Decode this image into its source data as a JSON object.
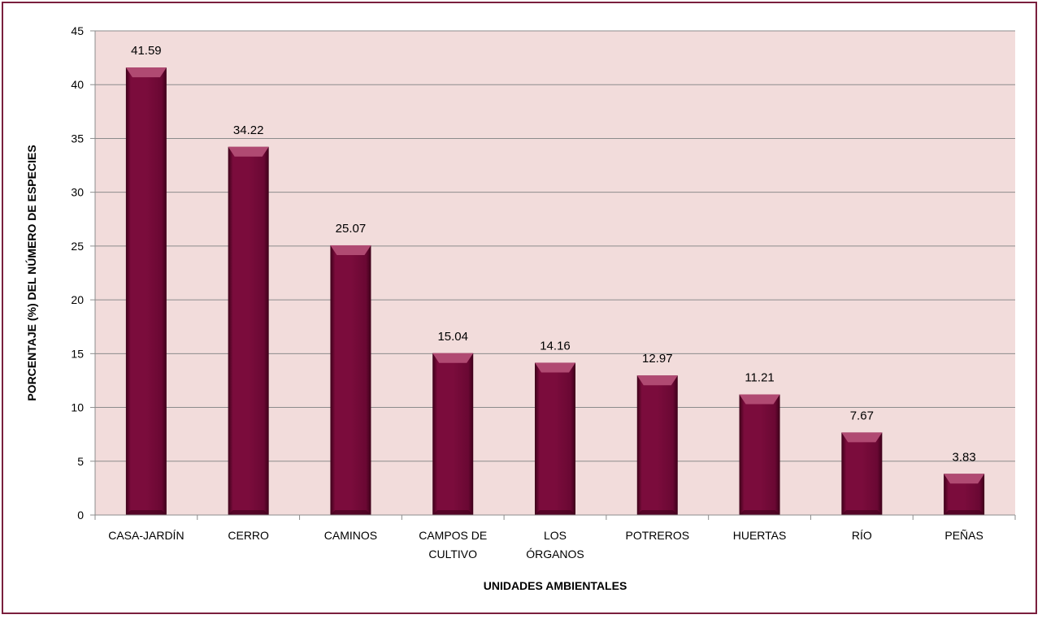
{
  "colors": {
    "plot_background": "#f2dcdb",
    "bar_fill": "#7b0c3c",
    "bar_highlight": "#b04a72",
    "bar_shadow": "#3d0019",
    "gridline": "#8c8c8c",
    "frame_border": "#7a1f3d"
  },
  "chart_data": {
    "type": "bar",
    "categories": [
      [
        "CASA-JARDÍN"
      ],
      [
        "CERRO"
      ],
      [
        "CAMINOS"
      ],
      [
        "CAMPOS DE",
        "CULTIVO"
      ],
      [
        "LOS",
        "ÓRGANOS"
      ],
      [
        "POTREROS"
      ],
      [
        "HUERTAS"
      ],
      [
        "RÍO"
      ],
      [
        "PEÑAS"
      ]
    ],
    "values": [
      41.59,
      34.22,
      25.07,
      15.04,
      14.16,
      12.97,
      11.21,
      7.67,
      3.83
    ],
    "value_labels": [
      "41.59",
      "34.22",
      "25.07",
      "15.04",
      "14.16",
      "12.97",
      "11.21",
      "7.67",
      "3.83"
    ],
    "title": "",
    "xlabel": "UNIDADES AMBIENTALES",
    "ylabel": "PORCENTAJE (%) DEL NÚMERO DE ESPECIES",
    "ylim": [
      0,
      45
    ],
    "yticks": [
      0,
      5,
      10,
      15,
      20,
      25,
      30,
      35,
      40,
      45
    ],
    "grid": true,
    "legend": "none"
  }
}
